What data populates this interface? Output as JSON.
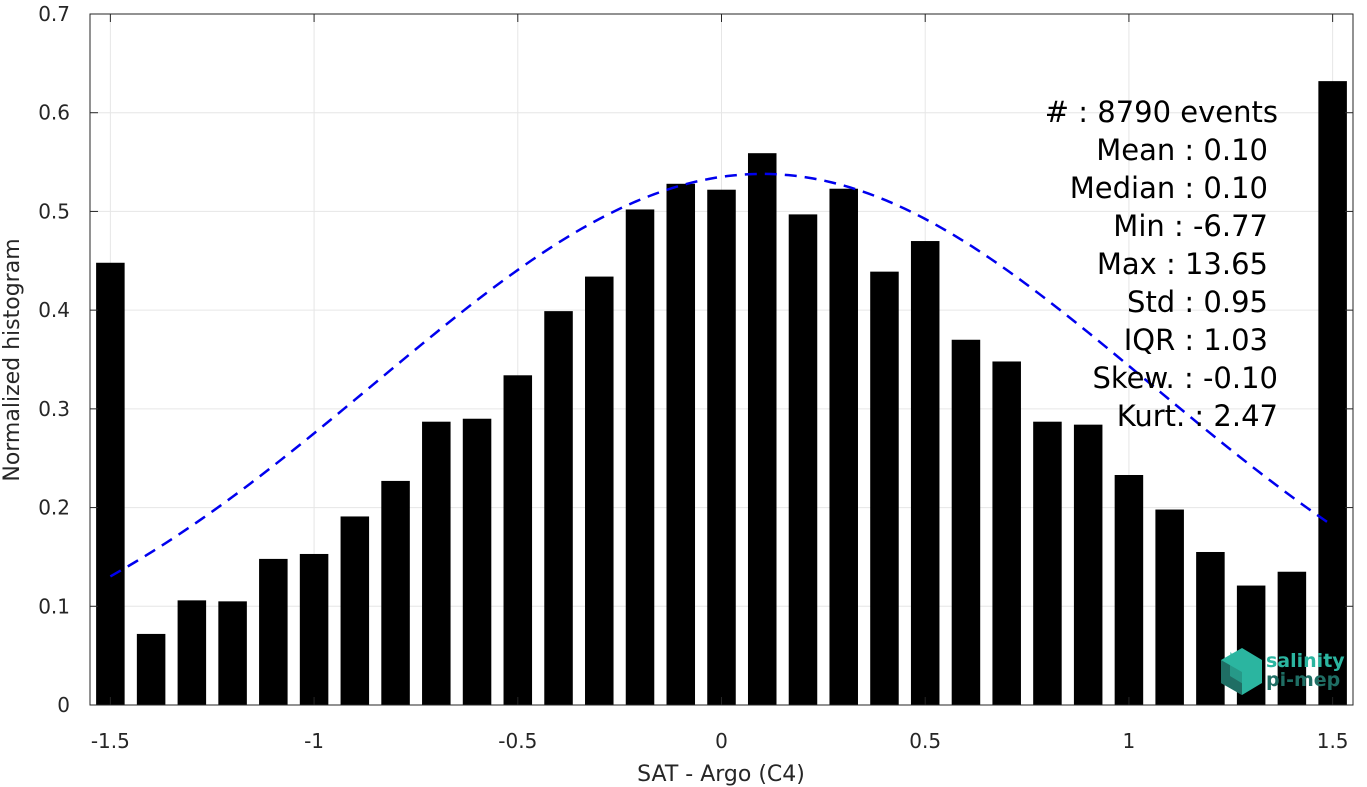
{
  "chart_data": {
    "type": "bar",
    "title": "",
    "xlabel": "SAT - Argo (C4)",
    "ylabel": "Normalized histogram",
    "xlim": [
      -1.55,
      1.55
    ],
    "ylim": [
      0,
      0.7
    ],
    "grid": true,
    "x_ticks": [
      -1.5,
      -1,
      -0.5,
      0,
      0.5,
      1,
      1.5
    ],
    "x_tick_labels": [
      "-1.5",
      "-1",
      "-0.5",
      "0",
      "0.5",
      "1",
      "1.5"
    ],
    "y_ticks": [
      0,
      0.1,
      0.2,
      0.3,
      0.4,
      0.5,
      0.6,
      0.7
    ],
    "y_tick_labels": [
      "0",
      "0.1",
      "0.2",
      "0.3",
      "0.4",
      "0.5",
      "0.6",
      "0.7"
    ],
    "x": [
      -1.5,
      -1.4,
      -1.3,
      -1.2,
      -1.1,
      -1.0,
      -0.9,
      -0.8,
      -0.7,
      -0.6,
      -0.5,
      -0.4,
      -0.3,
      -0.2,
      -0.1,
      0.0,
      0.1,
      0.2,
      0.3,
      0.4,
      0.5,
      0.6,
      0.7,
      0.8,
      0.9,
      1.0,
      1.1,
      1.2,
      1.3,
      1.4,
      1.5
    ],
    "values": [
      0.448,
      0.072,
      0.106,
      0.105,
      0.148,
      0.153,
      0.191,
      0.227,
      0.287,
      0.29,
      0.334,
      0.399,
      0.434,
      0.502,
      0.528,
      0.522,
      0.559,
      0.497,
      0.523,
      0.439,
      0.47,
      0.37,
      0.348,
      0.287,
      0.284,
      0.233,
      0.198,
      0.155,
      0.121,
      0.135,
      0.632
    ],
    "bar_color": "#000000",
    "fit_curve": {
      "style": "dashed",
      "color": "#0000ee",
      "mean": 0.1,
      "std": 0.95,
      "range": [
        -1.5,
        1.5
      ]
    },
    "stats": [
      "#  : 8790 events",
      "Mean : 0.10",
      "Median : 0.10",
      "Min : -6.77",
      "Max : 13.65",
      "Std : 0.95",
      "IQR : 1.03",
      "Skew. : -0.10",
      "Kurt. : 2.47"
    ]
  },
  "logo": {
    "line1": "salinity",
    "line2": "pi-mep",
    "color1": "#2bb5a0",
    "color2": "#1f6e64"
  }
}
